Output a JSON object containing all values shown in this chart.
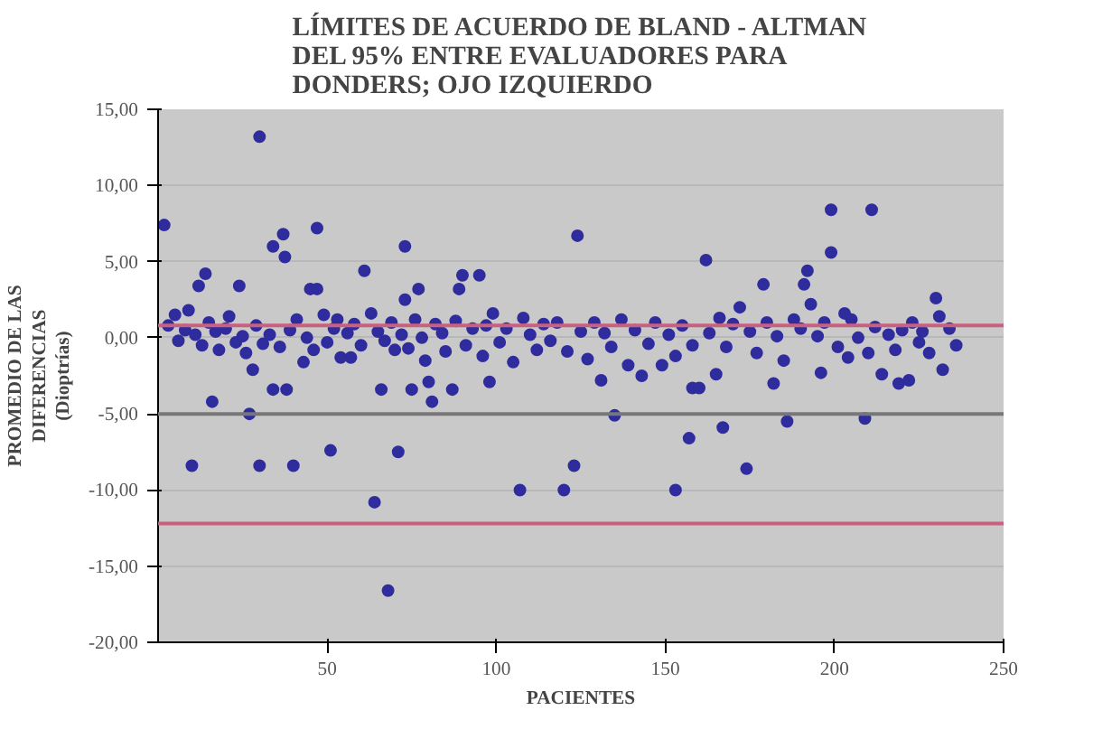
{
  "chart_data": {
    "type": "scatter",
    "title": "LÍMITES DE ACUERDO DE BLAND - ALTMAN\nDEL 95% ENTRE EVALUADORES PARA\nDONDERS; OJO IZQUIERDO",
    "xlabel": "PACIENTES",
    "ylabel": "PROMEDIO DE LAS\nDIFERENCIAS\n(Dioptrías)",
    "x": [
      1.8,
      30,
      10,
      12,
      14,
      16,
      24,
      27,
      28,
      30,
      34,
      37,
      37.5,
      34,
      38,
      40,
      43,
      45,
      47,
      47,
      51,
      50,
      54,
      57,
      61,
      64,
      66,
      68,
      70,
      71,
      73,
      73,
      75,
      77,
      80,
      81,
      87,
      89,
      90,
      95,
      98,
      99,
      124,
      107,
      120,
      123,
      131,
      135,
      153,
      157,
      158,
      160,
      162,
      165,
      167,
      174,
      179,
      182,
      186,
      192,
      191,
      196,
      199,
      199,
      203,
      204,
      209,
      211,
      214,
      219,
      222,
      225,
      230,
      232,
      3,
      5,
      6,
      8,
      9,
      11,
      13,
      15,
      17,
      18,
      20,
      21,
      23,
      25,
      26,
      29,
      31,
      33,
      36,
      39,
      41,
      44,
      46,
      49,
      52,
      53,
      56,
      58,
      60,
      63,
      65,
      67,
      69,
      72,
      74,
      76,
      78,
      79,
      82,
      84,
      85,
      88,
      91,
      93,
      96,
      97,
      101,
      103,
      105,
      108,
      110,
      112,
      114,
      116,
      118,
      121,
      125,
      127,
      129,
      132,
      134,
      137,
      139,
      141,
      143,
      145,
      147,
      149,
      151,
      153,
      155,
      158,
      163,
      166,
      168,
      170,
      172,
      175,
      177,
      180,
      183,
      185,
      188,
      190,
      193,
      195,
      197,
      201,
      205,
      207,
      210,
      212,
      216,
      218,
      220,
      223,
      226,
      228,
      231,
      234,
      236
    ],
    "series": [
      {
        "color": "#2f2c9e",
        "values": [
          7.4,
          13.2,
          -8.4,
          3.4,
          4.2,
          -4.2,
          3.4,
          -5,
          -2.1,
          -8.4,
          6,
          6.8,
          5.3,
          -3.4,
          -3.4,
          -8.4,
          -1.6,
          3.2,
          3.2,
          7.2,
          -7.4,
          -0.3,
          -1.3,
          -1.3,
          4.4,
          -10.8,
          -3.4,
          -16.6,
          -0.8,
          -7.5,
          6,
          2.5,
          -3.4,
          3.2,
          -2.9,
          -4.2,
          -3.4,
          3.2,
          4.1,
          4.1,
          -2.9,
          1.6,
          6.7,
          -10,
          -10,
          -8.4,
          -2.8,
          -5.1,
          -10,
          -6.6,
          -3.3,
          -3.3,
          5.1,
          -2.4,
          -5.9,
          -8.6,
          3.5,
          -3,
          -5.5,
          4.4,
          3.5,
          -2.3,
          8.4,
          5.6,
          1.6,
          -1.3,
          -5.3,
          8.4,
          -2.4,
          -3,
          -2.8,
          -0.3,
          2.6,
          -2.1,
          0.8,
          1.5,
          -0.2,
          0.5,
          1.8,
          0.2,
          -0.5,
          1.0,
          0.4,
          -0.8,
          0.6,
          1.4,
          -0.3,
          0.1,
          -1.0,
          0.8,
          -0.4,
          0.2,
          -0.6,
          0.5,
          1.2,
          0.0,
          -0.8,
          1.5,
          0.6,
          1.2,
          0.3,
          0.9,
          -0.5,
          1.6,
          0.4,
          -0.2,
          1.0,
          0.2,
          -0.7,
          1.2,
          0.0,
          -1.5,
          0.9,
          0.3,
          -0.9,
          1.1,
          -0.5,
          0.6,
          -1.2,
          0.8,
          -0.3,
          0.6,
          -1.6,
          1.3,
          0.2,
          -0.8,
          0.9,
          -0.2,
          1.0,
          -0.9,
          0.4,
          -1.4,
          1.0,
          0.3,
          -0.6,
          1.2,
          -1.8,
          0.5,
          -2.5,
          -0.4,
          1.0,
          -1.8,
          0.2,
          -1.2,
          0.8,
          -0.5,
          0.3,
          1.3,
          -0.6,
          0.9,
          2.0,
          0.4,
          -1.0,
          1.0,
          0.1,
          -1.5,
          1.2,
          0.6,
          2.2,
          0.1,
          1.0,
          -0.6,
          1.2,
          0.0,
          -1.0,
          0.7,
          0.2,
          -0.8,
          0.5,
          1.0,
          0.4,
          -1.0,
          1.4,
          0.6,
          -0.5
        ]
      }
    ],
    "xlim": [
      0,
      250
    ],
    "xticks": [
      50,
      100,
      150,
      200,
      250
    ],
    "ylim": [
      -20,
      15
    ],
    "yticks": [
      {
        "value": -20,
        "label": "-20,00"
      },
      {
        "value": -15,
        "label": "-15,00"
      },
      {
        "value": -10,
        "label": "-10,00"
      },
      {
        "value": -5,
        "label": "-5,00"
      },
      {
        "value": 0,
        "label": "0,00"
      },
      {
        "value": 5,
        "label": "5,00"
      },
      {
        "value": 10,
        "label": "10,00"
      },
      {
        "value": 15,
        "label": "15,00"
      }
    ],
    "ref_lines": [
      {
        "axis": "y",
        "value": -5,
        "color": "#777777"
      },
      {
        "axis": "y",
        "value": 0.8,
        "color": "#c8607e"
      },
      {
        "axis": "y",
        "value": -12.2,
        "color": "#c8607e"
      }
    ],
    "marker": "circle",
    "grid": "y"
  }
}
